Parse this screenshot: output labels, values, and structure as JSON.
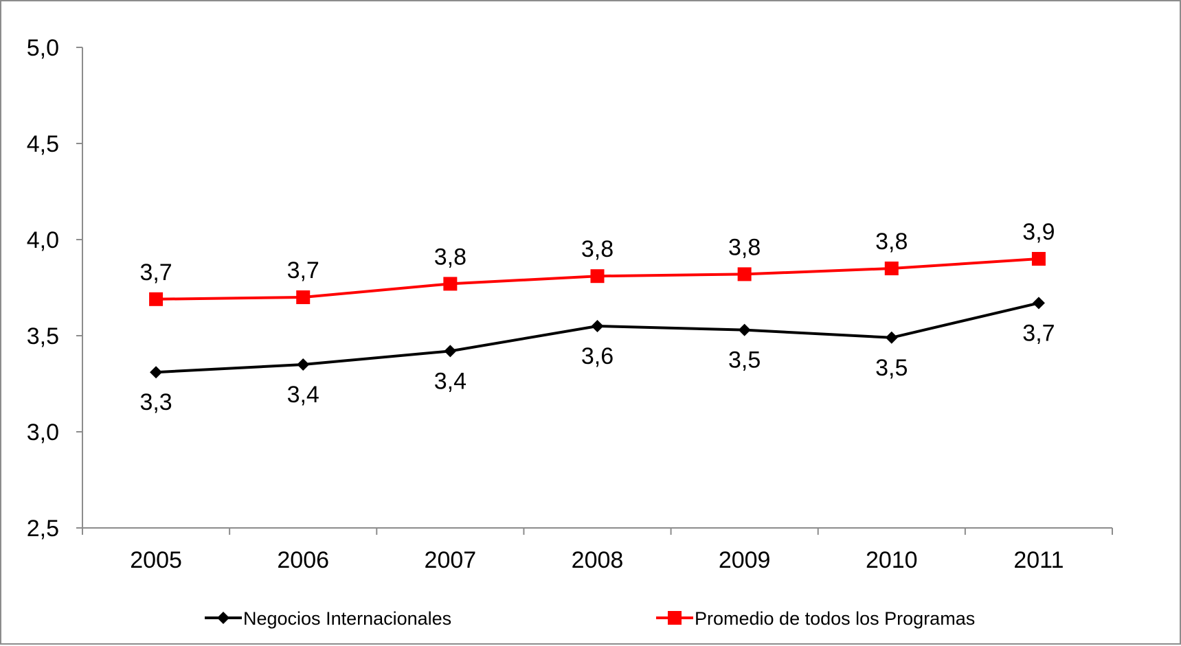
{
  "chart_data": {
    "type": "line",
    "title": "",
    "xlabel": "",
    "ylabel": "",
    "categories": [
      "2005",
      "2006",
      "2007",
      "2008",
      "2009",
      "2010",
      "2011"
    ],
    "ylim": [
      2.5,
      5.0
    ],
    "yticks": [
      2.5,
      3.0,
      3.5,
      4.0,
      4.5,
      5.0
    ],
    "ytick_labels": [
      "2,5",
      "3,0",
      "3,5",
      "4,0",
      "4,5",
      "5,0"
    ],
    "grid": false,
    "legend_position": "bottom",
    "series": [
      {
        "name": "Negocios Internacionales",
        "color": "#000000",
        "marker": "diamond",
        "values": [
          3.31,
          3.35,
          3.42,
          3.55,
          3.53,
          3.49,
          3.67
        ],
        "data_labels": [
          "3,3",
          "3,4",
          "3,4",
          "3,6",
          "3,5",
          "3,5",
          "3,7"
        ],
        "label_side": "below"
      },
      {
        "name": "Promedio de todos los Programas",
        "color": "#ff0000",
        "marker": "square",
        "values": [
          3.69,
          3.7,
          3.77,
          3.81,
          3.82,
          3.85,
          3.9
        ],
        "data_labels": [
          "3,7",
          "3,7",
          "3,8",
          "3,8",
          "3,8",
          "3,8",
          "3,9"
        ],
        "label_side": "above"
      }
    ]
  }
}
